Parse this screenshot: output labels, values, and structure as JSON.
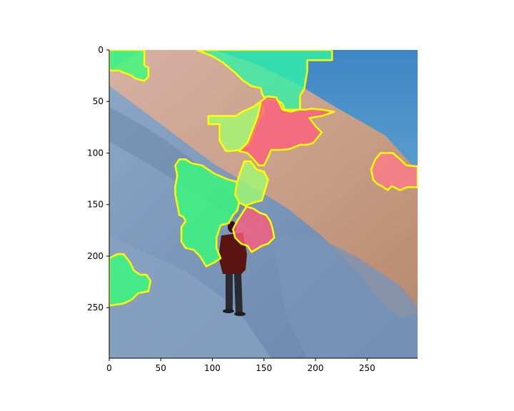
{
  "figure": {
    "x_ticks": [
      "0",
      "50",
      "100",
      "150",
      "200",
      "250"
    ],
    "y_ticks": [
      "0",
      "50",
      "100",
      "150",
      "200",
      "250"
    ],
    "x_tick_values": [
      0,
      50,
      100,
      150,
      200,
      250
    ],
    "y_tick_values": [
      0,
      50,
      100,
      150,
      200,
      250
    ],
    "x_range": [
      0,
      299
    ],
    "y_range": [
      0,
      299
    ],
    "y_axis_inverted": true
  },
  "colors": {
    "sky": "#4a8fc9",
    "sunlit_snow": "#c9a08a",
    "shadow_snow": "#7d9bbd",
    "deep_shadow": "#5d7898",
    "segment_green": "#36ff7a",
    "segment_teal": "#2ff5a6",
    "segment_lime": "#a0ff70",
    "segment_red": "#ff5c7c",
    "segment_pink": "#ff7a8a",
    "outline": "#ffff00",
    "climber": "#5a1410"
  },
  "image": {
    "subject": "mountaineer-on-snow-slope",
    "overlay": "superpixel-segmentation-mask"
  },
  "segments": [
    {
      "id": "teal-top",
      "color": "segment_teal",
      "polygon": [
        [
          85,
          0
        ],
        [
          216,
          0
        ],
        [
          216,
          10
        ],
        [
          192,
          10
        ],
        [
          192,
          20
        ],
        [
          189,
          38
        ],
        [
          185,
          44
        ],
        [
          185,
          58
        ],
        [
          170,
          58
        ],
        [
          168,
          52
        ],
        [
          163,
          49
        ],
        [
          156,
          48
        ],
        [
          152,
          49
        ],
        [
          148,
          42
        ],
        [
          147,
          37
        ],
        [
          138,
          35
        ],
        [
          130,
          30
        ],
        [
          122,
          22
        ],
        [
          110,
          12
        ],
        [
          100,
          6
        ],
        [
          90,
          2
        ]
      ]
    },
    {
      "id": "green-topleft",
      "color": "segment_green",
      "polygon": [
        [
          0,
          0
        ],
        [
          34,
          0
        ],
        [
          34,
          15
        ],
        [
          38,
          17
        ],
        [
          38,
          26
        ],
        [
          34,
          30
        ],
        [
          26,
          28
        ],
        [
          20,
          24
        ],
        [
          14,
          22
        ],
        [
          10,
          20
        ],
        [
          4,
          20
        ],
        [
          0,
          20
        ]
      ]
    },
    {
      "id": "lime-mid",
      "color": "segment_lime",
      "polygon": [
        [
          147,
          50
        ],
        [
          140,
          55
        ],
        [
          129,
          60
        ],
        [
          123,
          64
        ],
        [
          108,
          64
        ],
        [
          96,
          64
        ],
        [
          96,
          72
        ],
        [
          107,
          72
        ],
        [
          107,
          88
        ],
        [
          113,
          98
        ],
        [
          118,
          98
        ],
        [
          126,
          97
        ],
        [
          136,
          91
        ],
        [
          139,
          84
        ],
        [
          143,
          72
        ],
        [
          150,
          60
        ]
      ]
    },
    {
      "id": "red-mid",
      "color": "segment_red",
      "polygon": [
        [
          147,
          50
        ],
        [
          153,
          45
        ],
        [
          162,
          46
        ],
        [
          165,
          52
        ],
        [
          168,
          58
        ],
        [
          176,
          60
        ],
        [
          183,
          58
        ],
        [
          190,
          58
        ],
        [
          196,
          57
        ],
        [
          207,
          58
        ],
        [
          218,
          60
        ],
        [
          206,
          64
        ],
        [
          194,
          66
        ],
        [
          200,
          74
        ],
        [
          206,
          80
        ],
        [
          198,
          90
        ],
        [
          192,
          92
        ],
        [
          185,
          92
        ],
        [
          175,
          96
        ],
        [
          166,
          97
        ],
        [
          157,
          97
        ],
        [
          154,
          104
        ],
        [
          150,
          112
        ],
        [
          145,
          112
        ],
        [
          140,
          106
        ],
        [
          134,
          100
        ],
        [
          126,
          98
        ],
        [
          134,
          90
        ],
        [
          138,
          80
        ],
        [
          144,
          64
        ]
      ]
    },
    {
      "id": "lime-center",
      "color": "segment_lime",
      "polygon": [
        [
          131,
          108
        ],
        [
          137,
          108
        ],
        [
          143,
          116
        ],
        [
          150,
          118
        ],
        [
          154,
          126
        ],
        [
          151,
          136
        ],
        [
          148,
          146
        ],
        [
          140,
          148
        ],
        [
          132,
          151
        ],
        [
          126,
          148
        ],
        [
          122,
          140
        ],
        [
          124,
          128
        ],
        [
          128,
          116
        ]
      ]
    },
    {
      "id": "green-center",
      "color": "segment_green",
      "polygon": [
        [
          74,
          106
        ],
        [
          80,
          110
        ],
        [
          90,
          112
        ],
        [
          102,
          120
        ],
        [
          116,
          126
        ],
        [
          124,
          128
        ],
        [
          122,
          140
        ],
        [
          126,
          148
        ],
        [
          124,
          156
        ],
        [
          120,
          160
        ],
        [
          116,
          168
        ],
        [
          108,
          170
        ],
        [
          104,
          182
        ],
        [
          104,
          192
        ],
        [
          108,
          202
        ],
        [
          102,
          206
        ],
        [
          94,
          210
        ],
        [
          88,
          200
        ],
        [
          82,
          194
        ],
        [
          74,
          192
        ],
        [
          70,
          186
        ],
        [
          70,
          172
        ],
        [
          74,
          166
        ],
        [
          72,
          162
        ],
        [
          68,
          160
        ],
        [
          66,
          150
        ],
        [
          64,
          140
        ],
        [
          64,
          132
        ],
        [
          66,
          122
        ],
        [
          64,
          112
        ],
        [
          68,
          106
        ]
      ]
    },
    {
      "id": "pink-right",
      "color": "segment_pink",
      "polygon": [
        [
          263,
          100
        ],
        [
          275,
          100
        ],
        [
          282,
          106
        ],
        [
          288,
          112
        ],
        [
          299,
          113
        ],
        [
          299,
          133
        ],
        [
          289,
          133
        ],
        [
          282,
          136
        ],
        [
          274,
          132
        ],
        [
          270,
          136
        ],
        [
          264,
          132
        ],
        [
          260,
          130
        ],
        [
          256,
          126
        ],
        [
          254,
          116
        ],
        [
          258,
          106
        ]
      ]
    },
    {
      "id": "red-lower",
      "color": "segment_red",
      "polygon": [
        [
          133,
          152
        ],
        [
          140,
          154
        ],
        [
          146,
          158
        ],
        [
          152,
          160
        ],
        [
          156,
          166
        ],
        [
          158,
          172
        ],
        [
          160,
          182
        ],
        [
          154,
          188
        ],
        [
          148,
          190
        ],
        [
          138,
          196
        ],
        [
          134,
          190
        ],
        [
          128,
          188
        ],
        [
          122,
          182
        ],
        [
          120,
          174
        ],
        [
          124,
          166
        ],
        [
          128,
          160
        ]
      ]
    },
    {
      "id": "green-lower-left",
      "color": "segment_green",
      "polygon": [
        [
          0,
          202
        ],
        [
          8,
          198
        ],
        [
          14,
          198
        ],
        [
          20,
          206
        ],
        [
          24,
          214
        ],
        [
          30,
          218
        ],
        [
          36,
          218
        ],
        [
          40,
          224
        ],
        [
          38,
          234
        ],
        [
          28,
          236
        ],
        [
          22,
          242
        ],
        [
          14,
          246
        ],
        [
          0,
          248
        ]
      ]
    }
  ]
}
